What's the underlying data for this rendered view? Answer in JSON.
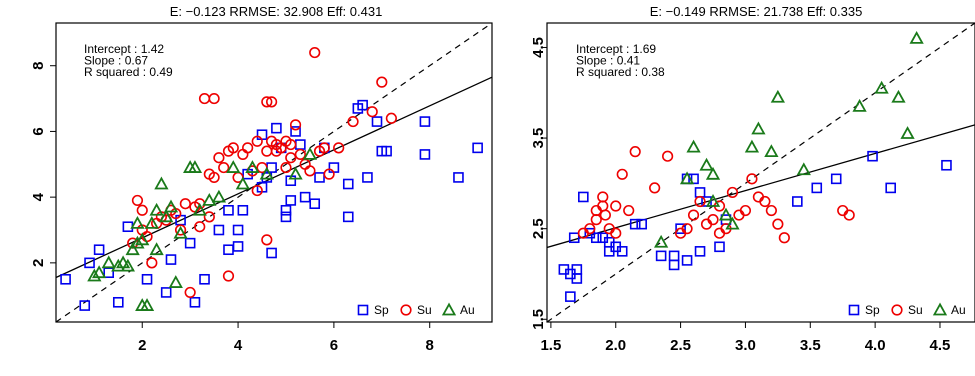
{
  "chart_data": [
    {
      "type": "scatter",
      "title": "E: −0.123   RRMSE: 32.908   Eff: 0.431",
      "annotations": [
        "Intercept : 1.42",
        "Slope : 0.67",
        "R squared : 0.49"
      ],
      "xlim": [
        0.2,
        9.3
      ],
      "ylim": [
        0.2,
        9.3
      ],
      "xticks": [
        2,
        4,
        6,
        8
      ],
      "yticks": [
        2,
        4,
        6,
        8
      ],
      "xtick_labels": [
        "2",
        "4",
        "6",
        "8"
      ],
      "ytick_labels": [
        "2",
        "4",
        "6",
        "8"
      ],
      "legend_position": "bottom-right",
      "fit_line": {
        "intercept": 1.42,
        "slope": 0.67
      },
      "reference_line": {
        "intercept": 0,
        "slope": 1,
        "style": "dashed"
      },
      "series": [
        {
          "name": "Sp",
          "marker": "square",
          "color": "#0000ee",
          "points": [
            [
              0.4,
              1.5
            ],
            [
              0.8,
              0.7
            ],
            [
              0.9,
              2.0
            ],
            [
              1.1,
              2.4
            ],
            [
              1.3,
              1.7
            ],
            [
              1.5,
              0.8
            ],
            [
              1.7,
              3.1
            ],
            [
              2.1,
              1.5
            ],
            [
              2.5,
              1.1
            ],
            [
              2.6,
              2.1
            ],
            [
              2.8,
              3.3
            ],
            [
              3.0,
              2.6
            ],
            [
              3.3,
              1.5
            ],
            [
              3.6,
              3.0
            ],
            [
              3.8,
              3.6
            ],
            [
              4.0,
              3.0
            ],
            [
              4.0,
              2.5
            ],
            [
              4.1,
              3.6
            ],
            [
              4.2,
              4.7
            ],
            [
              4.5,
              5.9
            ],
            [
              4.5,
              4.3
            ],
            [
              4.6,
              4.6
            ],
            [
              4.7,
              2.3
            ],
            [
              4.7,
              4.9
            ],
            [
              4.8,
              6.1
            ],
            [
              4.9,
              5.5
            ],
            [
              5.0,
              3.4
            ],
            [
              5.0,
              3.6
            ],
            [
              5.1,
              3.9
            ],
            [
              5.1,
              4.5
            ],
            [
              5.2,
              6.0
            ],
            [
              5.3,
              5.6
            ],
            [
              5.4,
              4.0
            ],
            [
              5.6,
              3.8
            ],
            [
              5.7,
              4.6
            ],
            [
              5.8,
              5.5
            ],
            [
              6.0,
              4.9
            ],
            [
              6.3,
              3.4
            ],
            [
              6.3,
              4.4
            ],
            [
              6.5,
              6.7
            ],
            [
              6.6,
              6.8
            ],
            [
              6.7,
              4.6
            ],
            [
              6.9,
              6.3
            ],
            [
              7.0,
              5.4
            ],
            [
              7.1,
              5.4
            ],
            [
              7.9,
              6.3
            ],
            [
              7.9,
              5.3
            ],
            [
              8.6,
              4.6
            ],
            [
              9.0,
              5.5
            ],
            [
              3.1,
              0.8
            ],
            [
              3.8,
              2.4
            ]
          ]
        },
        {
          "name": "Su",
          "marker": "circle",
          "color": "#ee0000",
          "points": [
            [
              1.8,
              2.6
            ],
            [
              1.9,
              3.9
            ],
            [
              2.0,
              3.0
            ],
            [
              2.0,
              3.6
            ],
            [
              2.1,
              2.8
            ],
            [
              2.3,
              3.2
            ],
            [
              2.4,
              3.4
            ],
            [
              2.5,
              3.3
            ],
            [
              2.6,
              3.6
            ],
            [
              2.7,
              3.5
            ],
            [
              2.8,
              3.0
            ],
            [
              2.9,
              3.8
            ],
            [
              3.0,
              1.1
            ],
            [
              3.1,
              3.7
            ],
            [
              3.2,
              3.1
            ],
            [
              3.2,
              3.8
            ],
            [
              3.3,
              7.0
            ],
            [
              3.4,
              4.7
            ],
            [
              3.5,
              4.6
            ],
            [
              3.5,
              7.0
            ],
            [
              3.6,
              5.2
            ],
            [
              3.7,
              4.9
            ],
            [
              3.8,
              5.4
            ],
            [
              3.8,
              1.6
            ],
            [
              3.9,
              5.5
            ],
            [
              4.0,
              4.6
            ],
            [
              4.1,
              5.3
            ],
            [
              4.2,
              5.5
            ],
            [
              4.3,
              4.8
            ],
            [
              4.4,
              5.7
            ],
            [
              4.4,
              4.2
            ],
            [
              4.5,
              4.9
            ],
            [
              4.6,
              5.4
            ],
            [
              4.6,
              6.9
            ],
            [
              4.7,
              6.9
            ],
            [
              4.7,
              5.7
            ],
            [
              4.8,
              5.6
            ],
            [
              4.8,
              5.4
            ],
            [
              4.9,
              5.5
            ],
            [
              5.0,
              5.7
            ],
            [
              5.0,
              4.9
            ],
            [
              5.1,
              5.2
            ],
            [
              5.1,
              5.6
            ],
            [
              5.2,
              6.2
            ],
            [
              5.3,
              5.3
            ],
            [
              5.4,
              5.0
            ],
            [
              5.5,
              4.8
            ],
            [
              5.6,
              8.4
            ],
            [
              5.7,
              5.4
            ],
            [
              5.8,
              5.5
            ],
            [
              5.9,
              4.7
            ],
            [
              6.1,
              5.5
            ],
            [
              6.4,
              6.3
            ],
            [
              6.8,
              6.6
            ],
            [
              7.0,
              7.5
            ],
            [
              7.2,
              6.4
            ],
            [
              4.6,
              2.7
            ],
            [
              2.2,
              2.0
            ],
            [
              3.4,
              3.4
            ]
          ]
        },
        {
          "name": "Au",
          "marker": "triangle",
          "color": "#1a7a1a",
          "points": [
            [
              1.0,
              1.6
            ],
            [
              1.1,
              1.7
            ],
            [
              1.3,
              2.0
            ],
            [
              1.5,
              1.9
            ],
            [
              1.6,
              2.0
            ],
            [
              1.7,
              1.9
            ],
            [
              1.8,
              2.4
            ],
            [
              1.9,
              2.6
            ],
            [
              1.9,
              3.2
            ],
            [
              2.0,
              2.7
            ],
            [
              2.0,
              0.7
            ],
            [
              2.1,
              0.7
            ],
            [
              2.2,
              3.2
            ],
            [
              2.3,
              3.6
            ],
            [
              2.3,
              2.4
            ],
            [
              2.4,
              4.4
            ],
            [
              2.5,
              3.4
            ],
            [
              2.6,
              3.7
            ],
            [
              2.7,
              1.4
            ],
            [
              2.8,
              2.9
            ],
            [
              3.0,
              4.9
            ],
            [
              3.1,
              4.9
            ],
            [
              3.2,
              3.6
            ],
            [
              3.4,
              3.9
            ],
            [
              3.6,
              4.0
            ],
            [
              3.9,
              4.9
            ],
            [
              4.1,
              4.4
            ],
            [
              4.3,
              4.9
            ],
            [
              4.6,
              4.7
            ],
            [
              5.2,
              4.7
            ],
            [
              5.5,
              5.3
            ]
          ]
        }
      ]
    },
    {
      "type": "scatter",
      "title": "E: −0.149   RRMSE: 21.738   Eff: 0.335",
      "annotations": [
        "Intercept : 1.69",
        "Slope : 0.41",
        "R squared : 0.38"
      ],
      "xlim": [
        1.47,
        4.77
      ],
      "ylim": [
        1.47,
        4.77
      ],
      "xticks": [
        1.5,
        2.0,
        2.5,
        3.0,
        3.5,
        4.0,
        4.5
      ],
      "yticks": [
        1.5,
        2.5,
        3.5,
        4.5
      ],
      "xtick_labels": [
        "1.5",
        "2.0",
        "2.5",
        "3.0",
        "3.5",
        "4.0",
        "4.5"
      ],
      "ytick_labels": [
        "1.5",
        "2.5",
        "3.5",
        "4.5"
      ],
      "legend_position": "bottom-right",
      "fit_line": {
        "intercept": 1.69,
        "slope": 0.41
      },
      "reference_line": {
        "intercept": 0,
        "slope": 1,
        "style": "dashed"
      },
      "series": [
        {
          "name": "Sp",
          "marker": "square",
          "color": "#0000ee",
          "points": [
            [
              1.6,
              2.05
            ],
            [
              1.65,
              1.75
            ],
            [
              1.65,
              2.0
            ],
            [
              1.7,
              1.95
            ],
            [
              1.7,
              2.05
            ],
            [
              1.68,
              2.4
            ],
            [
              1.75,
              2.85
            ],
            [
              1.8,
              2.45
            ],
            [
              1.85,
              2.4
            ],
            [
              1.9,
              2.4
            ],
            [
              1.95,
              2.35
            ],
            [
              1.95,
              2.25
            ],
            [
              2.0,
              2.3
            ],
            [
              2.05,
              2.25
            ],
            [
              2.15,
              2.55
            ],
            [
              2.2,
              2.55
            ],
            [
              2.35,
              2.2
            ],
            [
              2.45,
              2.2
            ],
            [
              2.45,
              2.1
            ],
            [
              2.5,
              2.5
            ],
            [
              2.55,
              2.15
            ],
            [
              2.55,
              3.05
            ],
            [
              2.6,
              3.05
            ],
            [
              2.65,
              2.9
            ],
            [
              2.7,
              2.8
            ],
            [
              2.8,
              2.3
            ],
            [
              2.85,
              2.6
            ],
            [
              3.4,
              2.8
            ],
            [
              3.55,
              2.95
            ],
            [
              3.7,
              3.05
            ],
            [
              3.98,
              3.3
            ],
            [
              4.12,
              2.95
            ],
            [
              4.55,
              3.2
            ],
            [
              2.65,
              2.25
            ]
          ]
        },
        {
          "name": "Su",
          "marker": "circle",
          "color": "#ee0000",
          "points": [
            [
              1.75,
              2.45
            ],
            [
              1.8,
              2.5
            ],
            [
              1.85,
              2.6
            ],
            [
              1.85,
              2.7
            ],
            [
              1.9,
              2.75
            ],
            [
              1.9,
              2.85
            ],
            [
              1.92,
              2.65
            ],
            [
              1.95,
              2.5
            ],
            [
              2.0,
              2.75
            ],
            [
              2.0,
              2.45
            ],
            [
              2.05,
              3.1
            ],
            [
              2.1,
              2.7
            ],
            [
              2.15,
              3.35
            ],
            [
              2.3,
              2.95
            ],
            [
              2.4,
              3.3
            ],
            [
              2.5,
              2.45
            ],
            [
              2.55,
              2.5
            ],
            [
              2.6,
              2.65
            ],
            [
              2.65,
              2.8
            ],
            [
              2.7,
              2.55
            ],
            [
              2.75,
              2.6
            ],
            [
              2.8,
              2.45
            ],
            [
              2.8,
              2.75
            ],
            [
              2.85,
              2.5
            ],
            [
              2.9,
              2.9
            ],
            [
              2.95,
              2.65
            ],
            [
              3.0,
              2.7
            ],
            [
              3.05,
              3.05
            ],
            [
              3.1,
              2.85
            ],
            [
              3.15,
              2.8
            ],
            [
              3.2,
              2.7
            ],
            [
              3.25,
              2.55
            ],
            [
              3.3,
              2.4
            ],
            [
              3.75,
              2.7
            ],
            [
              3.8,
              2.65
            ]
          ]
        },
        {
          "name": "Au",
          "marker": "triangle",
          "color": "#1a7a1a",
          "points": [
            [
              2.35,
              2.35
            ],
            [
              2.55,
              3.05
            ],
            [
              2.6,
              3.4
            ],
            [
              2.7,
              3.2
            ],
            [
              2.75,
              3.1
            ],
            [
              2.85,
              2.65
            ],
            [
              2.9,
              2.55
            ],
            [
              3.05,
              3.4
            ],
            [
              3.1,
              3.6
            ],
            [
              3.2,
              3.35
            ],
            [
              3.25,
              3.95
            ],
            [
              3.45,
              3.15
            ],
            [
              3.88,
              3.85
            ],
            [
              4.05,
              4.05
            ],
            [
              4.18,
              3.95
            ],
            [
              4.25,
              3.55
            ],
            [
              4.32,
              4.6
            ],
            [
              2.75,
              2.8
            ]
          ]
        }
      ]
    }
  ]
}
